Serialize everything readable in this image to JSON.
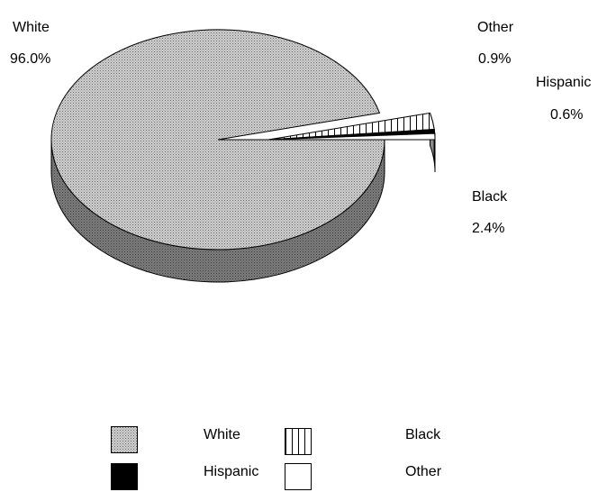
{
  "chart_data": {
    "type": "pie",
    "style": "3d",
    "slices": [
      {
        "label": "White",
        "value": 96.0,
        "display": "96.0%",
        "pattern": "dots",
        "exploded": false
      },
      {
        "label": "Black",
        "value": 2.4,
        "display": "2.4%",
        "pattern": "vertical",
        "exploded": true
      },
      {
        "label": "Hispanic",
        "value": 0.6,
        "display": "0.6%",
        "pattern": "solid",
        "exploded": true
      },
      {
        "label": "Other",
        "value": 0.9,
        "display": "0.9%",
        "pattern": "empty",
        "exploded": true
      }
    ],
    "legend": {
      "placement": "bottom",
      "items": [
        "White",
        "Black",
        "Hispanic",
        "Other"
      ]
    }
  },
  "colors": {
    "top": "#c9c9c9",
    "side": "#7a7a7a",
    "outline": "#000000",
    "solid": "#000000",
    "empty": "#ffffff"
  }
}
